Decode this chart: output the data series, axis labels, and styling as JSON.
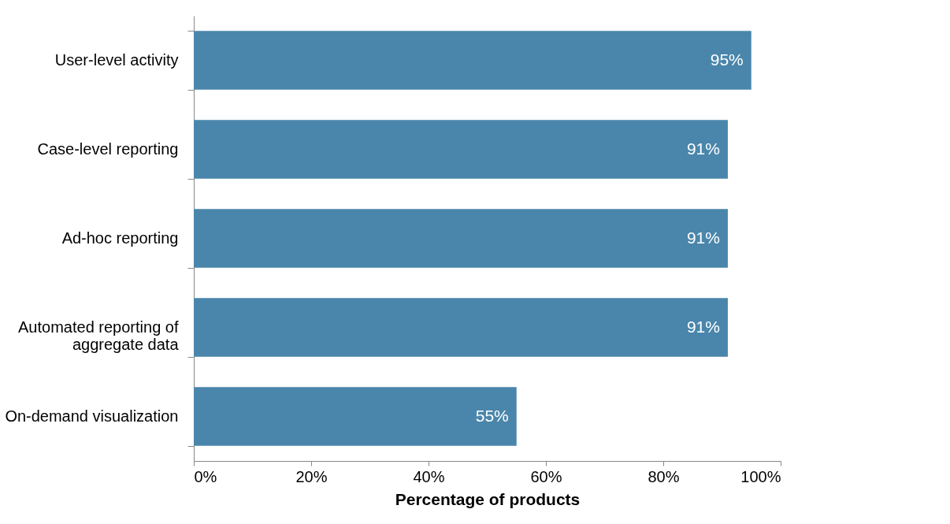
{
  "chart_data": {
    "type": "bar",
    "orientation": "horizontal",
    "xlabel": "Percentage of products",
    "categories": [
      "User-level activity",
      "Case-level reporting",
      "Ad-hoc reporting",
      "Automated reporting of aggregate data",
      "On-demand visualization"
    ],
    "values": [
      95,
      91,
      91,
      91,
      55
    ],
    "value_labels": [
      "95%",
      "91%",
      "91%",
      "91%",
      "55%"
    ],
    "color": "#4a86ab",
    "xlim": [
      0,
      100
    ],
    "xticks": [
      {
        "value": 0,
        "label": "0%"
      },
      {
        "value": 20,
        "label": "20%"
      },
      {
        "value": 40,
        "label": "40%"
      },
      {
        "value": 60,
        "label": "60%"
      },
      {
        "value": 80,
        "label": "80%"
      },
      {
        "value": 100,
        "label": "100%"
      }
    ],
    "grid": false
  }
}
